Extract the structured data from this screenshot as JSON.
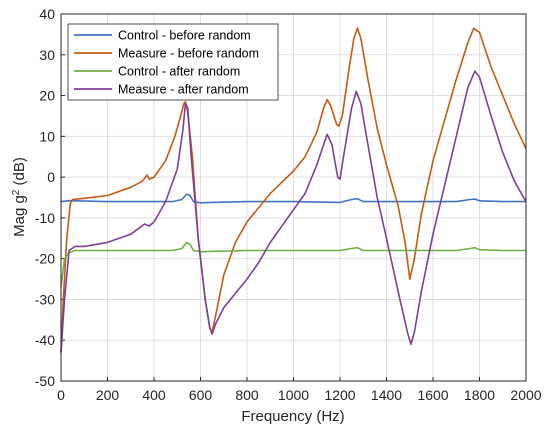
{
  "chart_data": {
    "type": "line",
    "xlabel": "Frequency (Hz)",
    "ylabel_prefix": "Mag g",
    "ylabel_sup": "2",
    "ylabel_suffix": " (dB)",
    "xlim": [
      0,
      2000
    ],
    "ylim": [
      -50,
      40
    ],
    "xticks": [
      0,
      200,
      400,
      600,
      800,
      1000,
      1200,
      1400,
      1600,
      1800,
      2000
    ],
    "yticks": [
      -50,
      -40,
      -30,
      -20,
      -10,
      0,
      10,
      20,
      30,
      40
    ],
    "grid": true,
    "legend_position": "top-left",
    "series": [
      {
        "name": "Control - before random",
        "color": "#4472c4",
        "points": [
          [
            0,
            -6
          ],
          [
            30,
            -5.8
          ],
          [
            60,
            -5.8
          ],
          [
            200,
            -6
          ],
          [
            400,
            -6
          ],
          [
            480,
            -6
          ],
          [
            520,
            -5.5
          ],
          [
            540,
            -4.2
          ],
          [
            555,
            -4.5
          ],
          [
            570,
            -6
          ],
          [
            600,
            -6.3
          ],
          [
            650,
            -6.2
          ],
          [
            800,
            -6
          ],
          [
            1000,
            -6
          ],
          [
            1200,
            -6.2
          ],
          [
            1250,
            -5.5
          ],
          [
            1275,
            -5.3
          ],
          [
            1300,
            -6
          ],
          [
            1400,
            -6
          ],
          [
            1500,
            -6
          ],
          [
            1600,
            -6
          ],
          [
            1700,
            -6
          ],
          [
            1760,
            -5.5
          ],
          [
            1780,
            -5.4
          ],
          [
            1800,
            -5.8
          ],
          [
            1900,
            -6
          ],
          [
            2000,
            -6
          ]
        ]
      },
      {
        "name": "Measure - before random",
        "color": "#c55a11",
        "points": [
          [
            0,
            -43
          ],
          [
            10,
            -30
          ],
          [
            25,
            -15
          ],
          [
            40,
            -6.5
          ],
          [
            50,
            -5.5
          ],
          [
            100,
            -5.2
          ],
          [
            200,
            -4.5
          ],
          [
            300,
            -2.5
          ],
          [
            350,
            -1
          ],
          [
            370,
            0.5
          ],
          [
            380,
            -0.5
          ],
          [
            400,
            0
          ],
          [
            450,
            4
          ],
          [
            490,
            10
          ],
          [
            515,
            15
          ],
          [
            528,
            18
          ],
          [
            535,
            18.5
          ],
          [
            545,
            16
          ],
          [
            565,
            5
          ],
          [
            590,
            -15
          ],
          [
            620,
            -30
          ],
          [
            640,
            -37
          ],
          [
            650,
            -38
          ],
          [
            665,
            -34
          ],
          [
            700,
            -24
          ],
          [
            750,
            -16
          ],
          [
            800,
            -11
          ],
          [
            900,
            -4
          ],
          [
            1000,
            1.5
          ],
          [
            1050,
            5
          ],
          [
            1100,
            11
          ],
          [
            1130,
            17
          ],
          [
            1145,
            19
          ],
          [
            1160,
            17.5
          ],
          [
            1185,
            13
          ],
          [
            1195,
            12.5
          ],
          [
            1210,
            15
          ],
          [
            1240,
            27
          ],
          [
            1260,
            34
          ],
          [
            1275,
            36.5
          ],
          [
            1290,
            34
          ],
          [
            1320,
            24
          ],
          [
            1360,
            12
          ],
          [
            1400,
            3
          ],
          [
            1450,
            -7
          ],
          [
            1480,
            -16
          ],
          [
            1500,
            -25
          ],
          [
            1520,
            -20
          ],
          [
            1550,
            -9
          ],
          [
            1600,
            4
          ],
          [
            1650,
            14
          ],
          [
            1700,
            24
          ],
          [
            1750,
            33
          ],
          [
            1775,
            36.5
          ],
          [
            1800,
            35.5
          ],
          [
            1850,
            27
          ],
          [
            1900,
            20
          ],
          [
            1950,
            13
          ],
          [
            2000,
            7
          ]
        ]
      },
      {
        "name": "Control - after random",
        "color": "#70ad47",
        "points": [
          [
            0,
            -27
          ],
          [
            15,
            -20
          ],
          [
            35,
            -18.5
          ],
          [
            60,
            -18
          ],
          [
            200,
            -18
          ],
          [
            400,
            -18
          ],
          [
            480,
            -18
          ],
          [
            520,
            -17.5
          ],
          [
            540,
            -16
          ],
          [
            555,
            -16.5
          ],
          [
            570,
            -18
          ],
          [
            600,
            -18.3
          ],
          [
            800,
            -18
          ],
          [
            1000,
            -18
          ],
          [
            1200,
            -18
          ],
          [
            1250,
            -17.5
          ],
          [
            1275,
            -17.3
          ],
          [
            1300,
            -18
          ],
          [
            1500,
            -18
          ],
          [
            1700,
            -18
          ],
          [
            1760,
            -17.5
          ],
          [
            1780,
            -17.3
          ],
          [
            1800,
            -17.8
          ],
          [
            1900,
            -18
          ],
          [
            2000,
            -18
          ]
        ]
      },
      {
        "name": "Measure - after random",
        "color": "#7f3f98",
        "points": [
          [
            0,
            -43
          ],
          [
            15,
            -30
          ],
          [
            35,
            -18
          ],
          [
            60,
            -17
          ],
          [
            100,
            -17
          ],
          [
            200,
            -16
          ],
          [
            300,
            -14
          ],
          [
            360,
            -11.5
          ],
          [
            380,
            -12
          ],
          [
            400,
            -11
          ],
          [
            450,
            -6
          ],
          [
            500,
            2
          ],
          [
            525,
            12
          ],
          [
            535,
            18
          ],
          [
            545,
            17
          ],
          [
            560,
            5
          ],
          [
            590,
            -15
          ],
          [
            620,
            -30
          ],
          [
            640,
            -37
          ],
          [
            650,
            -38.5
          ],
          [
            665,
            -36
          ],
          [
            700,
            -32
          ],
          [
            800,
            -25
          ],
          [
            850,
            -21
          ],
          [
            900,
            -16
          ],
          [
            1000,
            -8
          ],
          [
            1050,
            -4
          ],
          [
            1100,
            3
          ],
          [
            1130,
            8
          ],
          [
            1145,
            10.5
          ],
          [
            1165,
            8
          ],
          [
            1190,
            0
          ],
          [
            1200,
            -0.5
          ],
          [
            1215,
            5
          ],
          [
            1250,
            17
          ],
          [
            1270,
            21
          ],
          [
            1290,
            18
          ],
          [
            1320,
            8
          ],
          [
            1360,
            -5
          ],
          [
            1400,
            -15
          ],
          [
            1450,
            -28
          ],
          [
            1490,
            -38
          ],
          [
            1505,
            -41
          ],
          [
            1520,
            -38
          ],
          [
            1550,
            -28
          ],
          [
            1600,
            -14
          ],
          [
            1650,
            -2
          ],
          [
            1700,
            10
          ],
          [
            1750,
            22
          ],
          [
            1780,
            26
          ],
          [
            1800,
            24.5
          ],
          [
            1850,
            15
          ],
          [
            1900,
            6
          ],
          [
            1950,
            -1
          ],
          [
            2000,
            -6
          ]
        ]
      }
    ]
  }
}
